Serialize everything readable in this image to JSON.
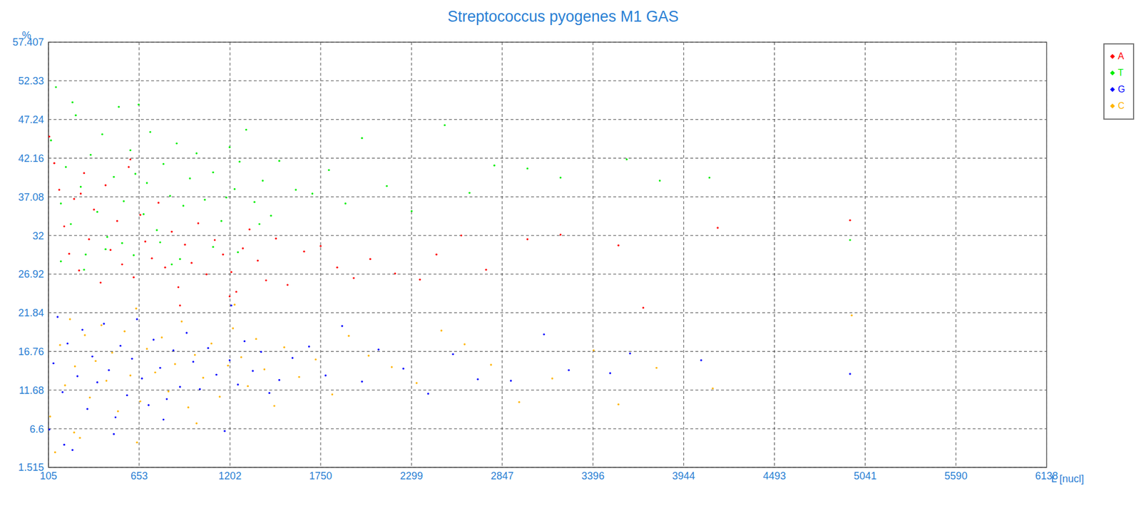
{
  "chart_data": {
    "type": "scatter",
    "title": "Streptococcus pyogenes M1 GAS",
    "x_label": "L [nucl]",
    "y_label": "%",
    "xlim": [
      105,
      6138
    ],
    "xticks": [
      105,
      653,
      1202,
      1750,
      2299,
      2847,
      3396,
      3944,
      4493,
      5041,
      5590,
      6138
    ],
    "ylim": [
      1.515,
      57.407
    ],
    "yticks": [
      1.515,
      6.6,
      11.68,
      16.76,
      21.84,
      26.92,
      32,
      37.08,
      42.16,
      47.24,
      52.33,
      57.407
    ],
    "grid": true,
    "legend": "right",
    "marker": "dot",
    "series": [
      {
        "name": "A",
        "color": "#ff0000",
        "x": [
          110,
          140,
          170,
          200,
          230,
          260,
          290,
          320,
          350,
          380,
          420,
          450,
          480,
          520,
          550,
          590,
          620,
          660,
          690,
          730,
          770,
          810,
          850,
          890,
          930,
          970,
          1010,
          1060,
          1110,
          1160,
          1210,
          1240,
          1280,
          1320,
          1370,
          1420,
          1480,
          1550,
          1650,
          1750,
          1850,
          1950,
          2050,
          2200,
          2350,
          2450,
          2600,
          2750,
          3000,
          3200,
          3550,
          3700,
          4150,
          4950,
          300,
          600,
          900,
          1200
        ],
        "values": [
          45.0,
          41.5,
          38.0,
          33.2,
          29.6,
          36.8,
          27.4,
          40.2,
          31.5,
          35.4,
          25.8,
          38.6,
          30.1,
          33.9,
          28.2,
          41.0,
          26.5,
          34.7,
          31.2,
          29.0,
          36.3,
          27.8,
          32.5,
          25.2,
          30.8,
          28.4,
          33.6,
          26.9,
          31.4,
          29.5,
          27.2,
          24.6,
          30.3,
          32.8,
          28.7,
          26.1,
          31.6,
          25.5,
          29.9,
          30.6,
          27.8,
          26.4,
          28.9,
          27.0,
          26.2,
          29.5,
          32.0,
          27.5,
          31.5,
          32.1,
          30.7,
          22.5,
          33.0,
          34.0,
          37.5,
          42.0,
          22.8,
          24.0
        ]
      },
      {
        "name": "T",
        "color": "#00ee00",
        "x": [
          120,
          150,
          180,
          210,
          240,
          270,
          300,
          330,
          360,
          400,
          430,
          460,
          500,
          530,
          560,
          600,
          630,
          650,
          680,
          700,
          720,
          760,
          800,
          840,
          880,
          920,
          960,
          1000,
          1050,
          1100,
          1150,
          1200,
          1230,
          1260,
          1300,
          1350,
          1400,
          1450,
          1500,
          1600,
          1700,
          1800,
          1900,
          2000,
          2150,
          2300,
          2500,
          2650,
          2800,
          3000,
          3200,
          3600,
          3800,
          4100,
          4950,
          180,
          320,
          450,
          620,
          780,
          900,
          1100,
          1250,
          1380,
          250,
          550,
          850,
          1180
        ],
        "values": [
          44.5,
          51.5,
          36.2,
          41.0,
          33.5,
          47.8,
          38.4,
          29.5,
          42.6,
          35.1,
          45.3,
          31.8,
          39.7,
          48.9,
          36.5,
          43.2,
          40.1,
          49.2,
          34.8,
          38.9,
          45.6,
          32.7,
          41.4,
          37.2,
          44.1,
          35.9,
          39.5,
          42.8,
          36.7,
          40.3,
          33.9,
          43.6,
          38.1,
          41.7,
          45.9,
          36.4,
          39.2,
          34.6,
          41.8,
          38.0,
          37.5,
          40.6,
          36.2,
          44.8,
          38.5,
          35.2,
          46.5,
          37.6,
          41.2,
          40.8,
          39.6,
          42.0,
          39.2,
          39.6,
          31.4,
          28.6,
          27.5,
          30.2,
          29.4,
          31.1,
          28.9,
          30.5,
          29.8,
          33.5,
          49.5,
          31.0,
          28.2,
          37.0
        ]
      },
      {
        "name": "G",
        "color": "#0000ff",
        "x": [
          110,
          135,
          160,
          190,
          220,
          250,
          280,
          310,
          340,
          370,
          400,
          440,
          470,
          510,
          540,
          580,
          610,
          640,
          670,
          710,
          740,
          780,
          820,
          860,
          900,
          940,
          980,
          1020,
          1070,
          1120,
          1170,
          1200,
          1250,
          1290,
          1340,
          1390,
          1440,
          1500,
          1580,
          1680,
          1780,
          1880,
          2000,
          2100,
          2250,
          2400,
          2550,
          2700,
          2900,
          3100,
          3250,
          3500,
          3620,
          4050,
          4950,
          200,
          500,
          800,
          1210
        ],
        "values": [
          6.5,
          15.2,
          21.3,
          11.4,
          17.8,
          3.8,
          13.5,
          19.6,
          9.2,
          16.1,
          12.7,
          20.4,
          14.3,
          8.1,
          17.5,
          11.0,
          15.8,
          21.0,
          13.2,
          9.7,
          18.3,
          14.6,
          10.5,
          16.9,
          12.1,
          19.2,
          15.4,
          11.8,
          17.2,
          13.7,
          6.3,
          15.6,
          12.4,
          18.1,
          14.2,
          16.7,
          11.3,
          13.0,
          15.9,
          17.4,
          13.6,
          20.1,
          12.8,
          17.0,
          14.5,
          11.2,
          16.4,
          13.1,
          12.9,
          19.0,
          14.3,
          13.9,
          16.5,
          15.6,
          13.8,
          4.5,
          5.9,
          7.8,
          22.8
        ]
      },
      {
        "name": "C",
        "color": "#ffb400",
        "x": [
          115,
          145,
          175,
          205,
          235,
          265,
          295,
          325,
          355,
          390,
          425,
          455,
          490,
          525,
          565,
          600,
          635,
          660,
          700,
          750,
          790,
          830,
          870,
          910,
          950,
          990,
          1040,
          1090,
          1140,
          1190,
          1220,
          1270,
          1310,
          1360,
          1410,
          1470,
          1530,
          1620,
          1720,
          1820,
          1920,
          2040,
          2180,
          2330,
          2480,
          2620,
          2780,
          2950,
          3150,
          3400,
          3550,
          3780,
          4120,
          4960,
          260,
          640,
          1000,
          1230
        ],
        "values": [
          8.2,
          3.5,
          17.6,
          12.3,
          21.0,
          14.8,
          5.4,
          18.9,
          10.7,
          15.5,
          20.2,
          12.9,
          16.6,
          8.9,
          19.4,
          13.6,
          22.4,
          10.2,
          17.1,
          14.0,
          18.6,
          11.5,
          15.1,
          20.7,
          9.4,
          16.3,
          13.3,
          17.8,
          10.8,
          14.9,
          19.8,
          16.0,
          12.2,
          18.4,
          14.4,
          9.6,
          17.3,
          13.4,
          15.7,
          11.1,
          18.8,
          16.2,
          14.7,
          12.6,
          19.5,
          17.7,
          15.0,
          10.1,
          13.2,
          16.9,
          9.8,
          14.6,
          11.9,
          21.5,
          6.1,
          4.8,
          7.3,
          22.9
        ]
      }
    ]
  }
}
